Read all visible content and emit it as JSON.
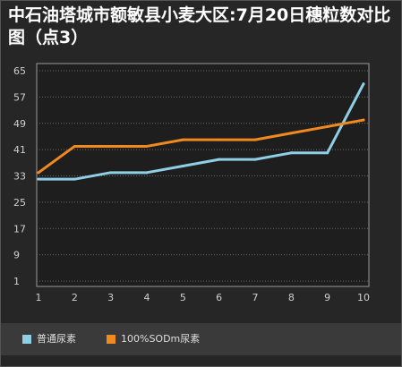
{
  "chart_data": {
    "type": "line",
    "title": "中石油塔城市额敏县小麦大区:7月20日穗粒数对比图（点3）",
    "x": [
      1,
      2,
      3,
      4,
      5,
      6,
      7,
      8,
      9,
      10
    ],
    "y_ticks": [
      1,
      9,
      17,
      25,
      33,
      41,
      49,
      57,
      65
    ],
    "ylim": [
      1,
      65
    ],
    "xlim": [
      1,
      10
    ],
    "grid": "horizontal dotted",
    "legend_position": "bottom",
    "series": [
      {
        "name": "普通尿素",
        "color": "#8fcfe6",
        "values": [
          32,
          32,
          34,
          34,
          36,
          38,
          38,
          40,
          40,
          61
        ]
      },
      {
        "name": "100%SODm尿素",
        "color": "#f08a1e",
        "values": [
          34,
          42,
          42,
          42,
          44,
          44,
          44,
          46,
          48,
          50
        ]
      }
    ]
  }
}
